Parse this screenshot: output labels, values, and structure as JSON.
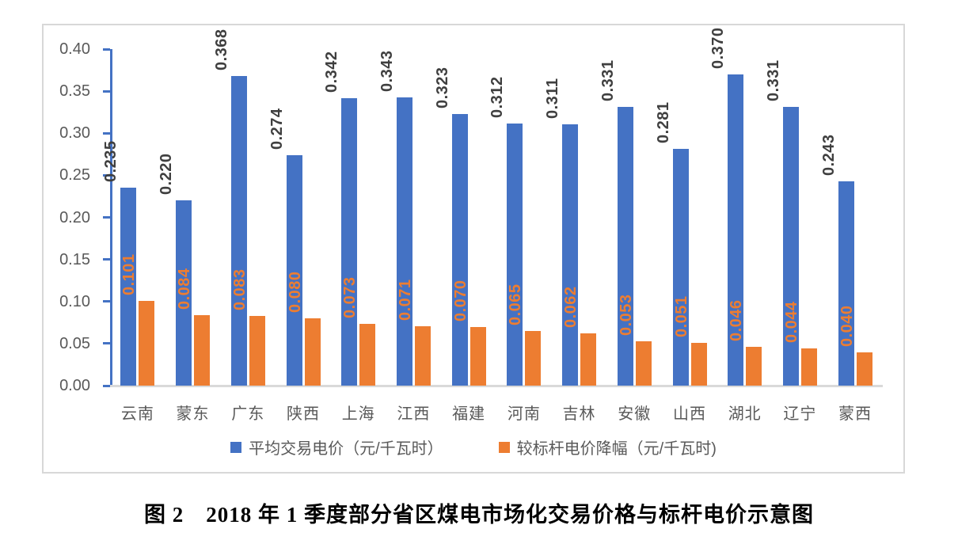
{
  "chart_data": {
    "type": "bar",
    "title": "",
    "categories": [
      "云南",
      "蒙东",
      "广东",
      "陕西",
      "上海",
      "江西",
      "福建",
      "河南",
      "吉林",
      "安徽",
      "山西",
      "湖北",
      "辽宁",
      "蒙西"
    ],
    "series": [
      {
        "name": "平均交易电价（元/千瓦时）",
        "color": "#4472C4",
        "label_color": "#3f3f3f",
        "values": [
          0.235,
          0.22,
          0.368,
          0.274,
          0.342,
          0.343,
          0.323,
          0.312,
          0.311,
          0.331,
          0.281,
          0.37,
          0.331,
          0.243
        ]
      },
      {
        "name": "较标杆电价降幅（元/千瓦时)",
        "color": "#ED7D31",
        "label_color": "#ED7D31",
        "values": [
          0.101,
          0.084,
          0.083,
          0.08,
          0.073,
          0.071,
          0.07,
          0.065,
          0.062,
          0.053,
          0.051,
          0.046,
          0.044,
          0.04
        ]
      }
    ],
    "ylim": [
      0,
      0.4
    ],
    "ytick_step": 0.05,
    "ytick_labels": [
      "0.00",
      "0.05",
      "0.10",
      "0.15",
      "0.20",
      "0.25",
      "0.30",
      "0.35",
      "0.40"
    ],
    "value_label_decimals": 3,
    "grid": false,
    "legend_position": "bottom"
  },
  "caption": "图 2　2018 年 1 季度部分省区煤电市场化交易价格与标杆电价示意图",
  "colors": {
    "axis_line": "#4472C4",
    "baseline": "#d9d9d9",
    "axis_text": "#595959",
    "frame_border": "#d8d8d8"
  }
}
